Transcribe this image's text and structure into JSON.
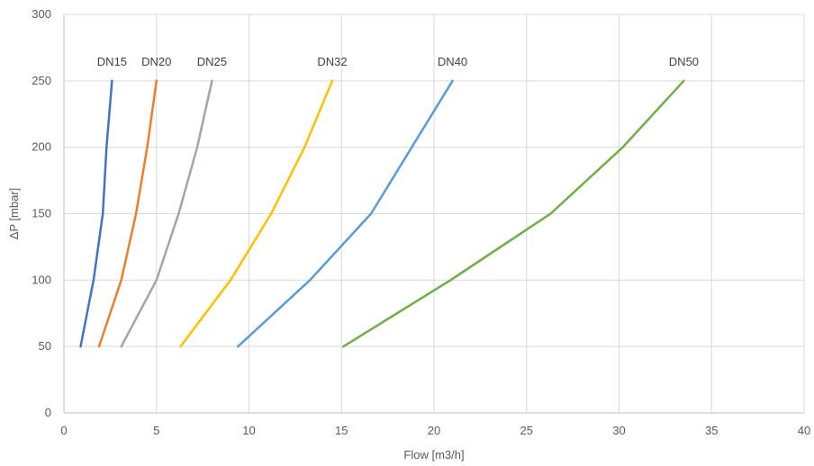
{
  "chart_data": {
    "type": "line",
    "xlabel": "Flow [m3/h]",
    "ylabel": "ΔP [mbar]",
    "xlim": [
      0,
      40
    ],
    "ylim": [
      0,
      300
    ],
    "xticks": [
      "0",
      "5",
      "10",
      "15",
      "20",
      "25",
      "30",
      "35",
      "40"
    ],
    "yticks": [
      "0",
      "50",
      "100",
      "150",
      "200",
      "250",
      "300"
    ],
    "grid": true,
    "series": [
      {
        "name": "DN15",
        "color": "#4472c4",
        "points": [
          [
            0.9,
            50
          ],
          [
            1.6,
            100
          ],
          [
            2.1,
            150
          ],
          [
            2.3,
            200
          ],
          [
            2.6,
            250
          ]
        ]
      },
      {
        "name": "DN20",
        "color": "#ed7d31",
        "points": [
          [
            1.9,
            50
          ],
          [
            3.1,
            100
          ],
          [
            3.9,
            150
          ],
          [
            4.5,
            200
          ],
          [
            5.0,
            250
          ]
        ]
      },
      {
        "name": "DN25",
        "color": "#a5a5a5",
        "points": [
          [
            3.1,
            50
          ],
          [
            5.0,
            100
          ],
          [
            6.2,
            150
          ],
          [
            7.2,
            200
          ],
          [
            8.0,
            250
          ]
        ]
      },
      {
        "name": "DN32",
        "color": "#ffc000",
        "points": [
          [
            6.3,
            50
          ],
          [
            9.0,
            100
          ],
          [
            11.2,
            150
          ],
          [
            13.0,
            200
          ],
          [
            14.5,
            250
          ]
        ]
      },
      {
        "name": "DN40",
        "color": "#5b9bd5",
        "points": [
          [
            9.4,
            50
          ],
          [
            13.3,
            100
          ],
          [
            16.6,
            150
          ],
          [
            18.8,
            200
          ],
          [
            21.0,
            250
          ]
        ]
      },
      {
        "name": "DN50",
        "color": "#70ad47",
        "points": [
          [
            15.1,
            50
          ],
          [
            20.9,
            100
          ],
          [
            26.3,
            150
          ],
          [
            30.2,
            200
          ],
          [
            33.5,
            250
          ]
        ]
      }
    ]
  }
}
